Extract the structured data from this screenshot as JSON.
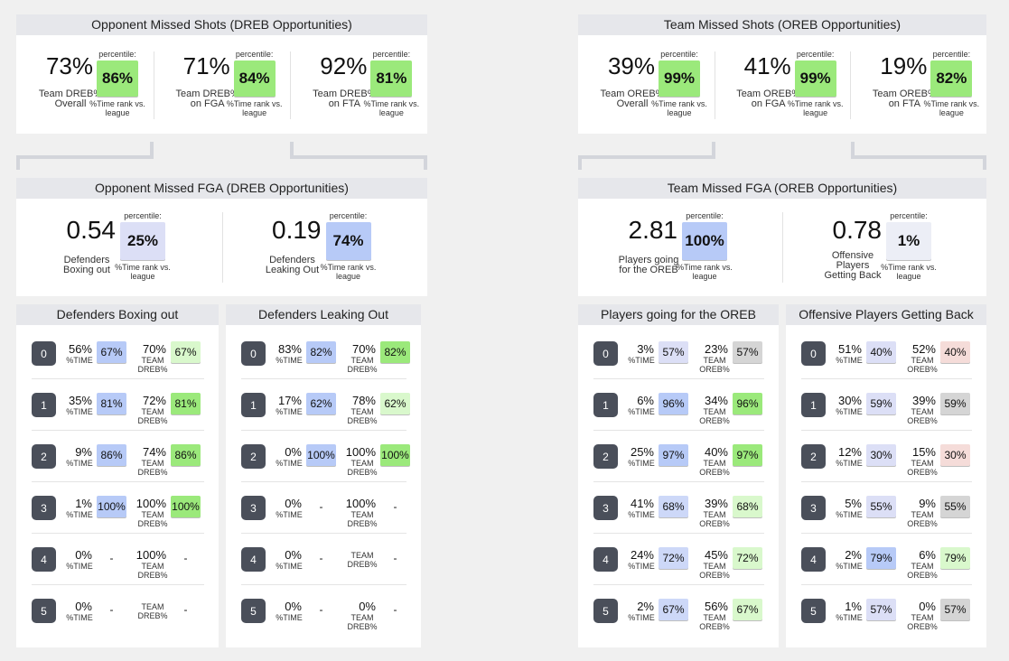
{
  "labels": {
    "percentile": "percentile:",
    "rank": "%Time rank vs. league",
    "time": "%TIME"
  },
  "halves": [
    {
      "top": {
        "title": "Opponent Missed Shots (DREB Opportunities)",
        "stats": [
          {
            "value": "73%",
            "label": "Team DREB% Overall",
            "percentile": "86%",
            "color": "#9be97b"
          },
          {
            "value": "71%",
            "label": "Team DREB% on FGA",
            "percentile": "84%",
            "color": "#9be97b"
          },
          {
            "value": "92%",
            "label": "Team DREB% on FTA",
            "percentile": "81%",
            "color": "#9be97b"
          }
        ]
      },
      "mid": {
        "title": "Opponent Missed FGA (DREB Opportunities)",
        "stats": [
          {
            "value": "0.54",
            "label": "Defenders Boxing out",
            "percentile": "25%",
            "color": "#dcdff6"
          },
          {
            "value": "0.19",
            "label": "Defenders Leaking Out",
            "percentile": "74%",
            "color": "#b7caf7"
          }
        ]
      },
      "panels": [
        {
          "title": "Defenders Boxing out",
          "rate_label": "TEAM DREB%",
          "rows": [
            {
              "index": 0,
              "time": "56%",
              "time_pct": "67%",
              "time_color": "#b7caf7",
              "rate": "70%",
              "rate_pct": "67%",
              "rate_color": "#d9f8cc"
            },
            {
              "index": 1,
              "time": "35%",
              "time_pct": "81%",
              "time_color": "#b7caf7",
              "rate": "72%",
              "rate_pct": "81%",
              "rate_color": "#9be97b"
            },
            {
              "index": 2,
              "time": "9%",
              "time_pct": "86%",
              "time_color": "#b7caf7",
              "rate": "74%",
              "rate_pct": "86%",
              "rate_color": "#9be97b"
            },
            {
              "index": 3,
              "time": "1%",
              "time_pct": "100%",
              "time_color": "#b7caf7",
              "rate": "100%",
              "rate_pct": "100%",
              "rate_color": "#9be97b"
            },
            {
              "index": 4,
              "time": "0%",
              "time_pct": "-",
              "rate": "100%",
              "rate_pct": "-"
            },
            {
              "index": 5,
              "time": "0%",
              "time_pct": "-",
              "rate_pct": "-"
            }
          ]
        },
        {
          "title": "Defenders Leaking Out",
          "rate_label": "TEAM DREB%",
          "rows": [
            {
              "index": 0,
              "time": "83%",
              "time_pct": "82%",
              "time_color": "#b7caf7",
              "rate": "70%",
              "rate_pct": "82%",
              "rate_color": "#9be97b"
            },
            {
              "index": 1,
              "time": "17%",
              "time_pct": "62%",
              "time_color": "#b7caf7",
              "rate": "78%",
              "rate_pct": "62%",
              "rate_color": "#d9f8cc"
            },
            {
              "index": 2,
              "time": "0%",
              "time_pct": "100%",
              "time_color": "#b7caf7",
              "rate": "100%",
              "rate_pct": "100%",
              "rate_color": "#9be97b"
            },
            {
              "index": 3,
              "time": "0%",
              "time_pct": "-",
              "rate": "100%",
              "rate_pct": "-"
            },
            {
              "index": 4,
              "time": "0%",
              "time_pct": "-",
              "rate_pct": "-"
            },
            {
              "index": 5,
              "time": "0%",
              "time_pct": "-",
              "rate": "0%",
              "rate_pct": "-"
            }
          ]
        }
      ]
    },
    {
      "top": {
        "title": "Team Missed Shots (OREB Opportunities)",
        "stats": [
          {
            "value": "39%",
            "label": "Team OREB% Overall",
            "percentile": "99%",
            "color": "#9be97b"
          },
          {
            "value": "41%",
            "label": "Team OREB% on FGA",
            "percentile": "99%",
            "color": "#9be97b"
          },
          {
            "value": "19%",
            "label": "Team OREB% on FTA",
            "percentile": "82%",
            "color": "#9be97b"
          }
        ]
      },
      "mid": {
        "title": "Team Missed FGA (OREB Opportunities)",
        "stats": [
          {
            "value": "2.81",
            "label": "Players going for the OREB",
            "percentile": "100%",
            "color": "#b7caf7"
          },
          {
            "value": "0.78",
            "label": "Offensive Players Getting Back",
            "percentile": "1%",
            "color": "#eceef6"
          }
        ]
      },
      "panels": [
        {
          "title": "Players going for the OREB",
          "rate_label": "TEAM OREB%",
          "rows": [
            {
              "index": 0,
              "time": "3%",
              "time_pct": "57%",
              "time_color": "#dcdff6",
              "rate": "23%",
              "rate_pct": "57%",
              "rate_color": "#d5d5d5"
            },
            {
              "index": 1,
              "time": "6%",
              "time_pct": "96%",
              "time_color": "#b7caf7",
              "rate": "34%",
              "rate_pct": "96%",
              "rate_color": "#9be97b"
            },
            {
              "index": 2,
              "time": "25%",
              "time_pct": "97%",
              "time_color": "#b7caf7",
              "rate": "40%",
              "rate_pct": "97%",
              "rate_color": "#9be97b"
            },
            {
              "index": 3,
              "time": "41%",
              "time_pct": "68%",
              "time_color": "#cdd8f8",
              "rate": "39%",
              "rate_pct": "68%",
              "rate_color": "#d9f8cc"
            },
            {
              "index": 4,
              "time": "24%",
              "time_pct": "72%",
              "time_color": "#cdd8f8",
              "rate": "45%",
              "rate_pct": "72%",
              "rate_color": "#d9f8cc"
            },
            {
              "index": 5,
              "time": "2%",
              "time_pct": "67%",
              "time_color": "#cdd8f8",
              "rate": "56%",
              "rate_pct": "67%",
              "rate_color": "#d9f8cc"
            }
          ]
        },
        {
          "title": "Offensive Players Getting Back",
          "rate_label": "TEAM OREB%",
          "rows": [
            {
              "index": 0,
              "time": "51%",
              "time_pct": "40%",
              "time_color": "#dcdff6",
              "rate": "52%",
              "rate_pct": "40%",
              "rate_color": "#f5dcd9"
            },
            {
              "index": 1,
              "time": "30%",
              "time_pct": "59%",
              "time_color": "#dcdff6",
              "rate": "39%",
              "rate_pct": "59%",
              "rate_color": "#d5d5d5"
            },
            {
              "index": 2,
              "time": "12%",
              "time_pct": "30%",
              "time_color": "#dcdff6",
              "rate": "15%",
              "rate_pct": "30%",
              "rate_color": "#f5dcd9"
            },
            {
              "index": 3,
              "time": "5%",
              "time_pct": "55%",
              "time_color": "#dcdff6",
              "rate": "9%",
              "rate_pct": "55%",
              "rate_color": "#d5d5d5"
            },
            {
              "index": 4,
              "time": "2%",
              "time_pct": "79%",
              "time_color": "#b7caf7",
              "rate": "6%",
              "rate_pct": "79%",
              "rate_color": "#d9f8cc"
            },
            {
              "index": 5,
              "time": "1%",
              "time_pct": "57%",
              "time_color": "#dcdff6",
              "rate": "0%",
              "rate_pct": "57%",
              "rate_color": "#d5d5d5"
            }
          ]
        }
      ]
    }
  ]
}
